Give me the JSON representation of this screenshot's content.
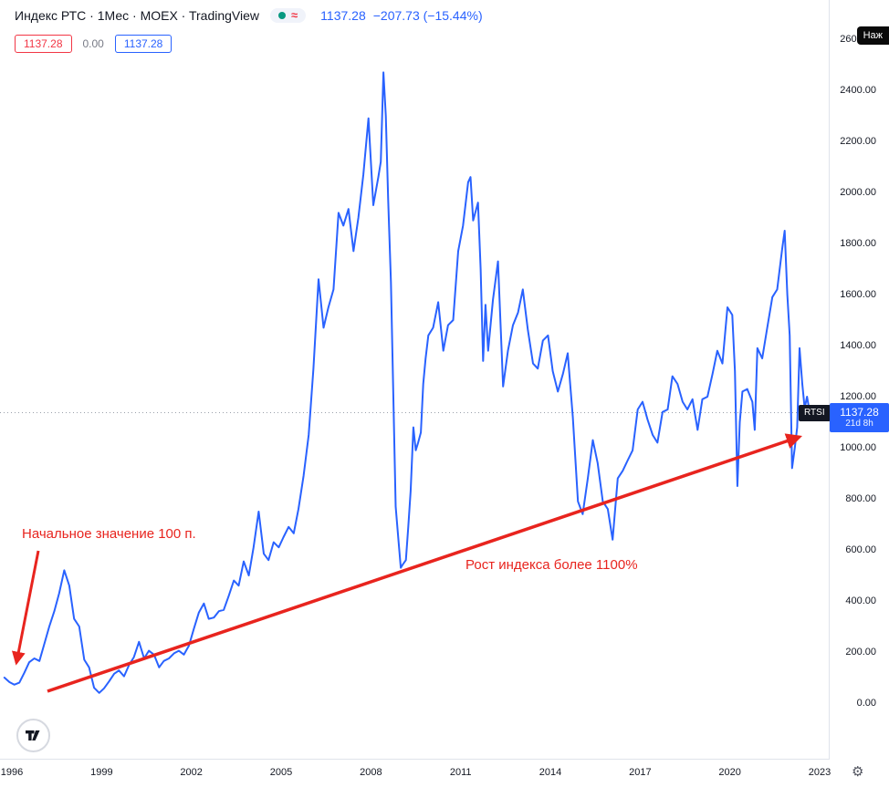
{
  "header": {
    "title": "Индекс РТС · 1Мес · MOEX · TradingView",
    "approx": "≈",
    "price": "1137.28",
    "change": "−207.73 (−15.44%)"
  },
  "legend": {
    "red": "1137.28",
    "spread": "0.00",
    "blue": "1137.28"
  },
  "top_right_note": "Наж",
  "price_tag": {
    "ticker": "RTSI",
    "price": "1137.28",
    "countdown": "21d 8h"
  },
  "icons": {
    "gear": "⚙"
  },
  "colors": {
    "line_blue": "#2962FF",
    "red": "#F23645",
    "annotation_red": "#E8241E",
    "axis_text": "#131722",
    "grid_border": "#E0E3EB",
    "muted": "#787B86",
    "green_dot": "#089981"
  },
  "y_axis": {
    "items": [
      {
        "v": 2600,
        "t": "2600.00"
      },
      {
        "v": 2400,
        "t": "2400.00"
      },
      {
        "v": 2200,
        "t": "2200.00"
      },
      {
        "v": 2000,
        "t": "2000.00"
      },
      {
        "v": 1800,
        "t": "1800.00"
      },
      {
        "v": 1600,
        "t": "1600.00"
      },
      {
        "v": 1400,
        "t": "1400.00"
      },
      {
        "v": 1200,
        "t": "1200.00"
      },
      {
        "v": 1000,
        "t": "1000.00"
      },
      {
        "v": 800,
        "t": "800.00"
      },
      {
        "v": 600,
        "t": "600.00"
      },
      {
        "v": 400,
        "t": "400.00"
      },
      {
        "v": 200,
        "t": "200.00"
      },
      {
        "v": 0,
        "t": "0.00"
      }
    ]
  },
  "x_axis": {
    "items": [
      {
        "v": 1996,
        "t": "1996"
      },
      {
        "v": 1999,
        "t": "1999"
      },
      {
        "v": 2002,
        "t": "2002"
      },
      {
        "v": 2005,
        "t": "2005"
      },
      {
        "v": 2008,
        "t": "2008"
      },
      {
        "v": 2011,
        "t": "2011"
      },
      {
        "v": 2014,
        "t": "2014"
      },
      {
        "v": 2017,
        "t": "2017"
      },
      {
        "v": 2020,
        "t": "2020"
      },
      {
        "v": 2023,
        "t": "2023"
      }
    ]
  },
  "chart_data": {
    "type": "line",
    "title": "Индекс РТС · 1Мес · MOEX",
    "series_name": "RTSI",
    "xlabel": "",
    "ylabel": "",
    "x_range": [
      1995.7,
      2023.3
    ],
    "ylim": [
      0,
      2600
    ],
    "y_tick_step": 200,
    "grid": false,
    "legend_position": "none",
    "line_color": "#2962FF",
    "last_price": 1137.28,
    "last_change": "−207.73 (−15.44%)",
    "annotations": {
      "start": "Начальное значение 100 п.",
      "growth": "Рост индекса более 1100%"
    },
    "points": [
      [
        1995.75,
        100
      ],
      [
        1995.92,
        82
      ],
      [
        1996.08,
        72
      ],
      [
        1996.25,
        80
      ],
      [
        1996.42,
        120
      ],
      [
        1996.58,
        160
      ],
      [
        1996.75,
        175
      ],
      [
        1996.92,
        165
      ],
      [
        1997.08,
        230
      ],
      [
        1997.25,
        300
      ],
      [
        1997.42,
        360
      ],
      [
        1997.58,
        430
      ],
      [
        1997.75,
        520
      ],
      [
        1997.92,
        460
      ],
      [
        1998.08,
        330
      ],
      [
        1998.25,
        300
      ],
      [
        1998.42,
        170
      ],
      [
        1998.58,
        140
      ],
      [
        1998.75,
        60
      ],
      [
        1998.92,
        40
      ],
      [
        1999.08,
        58
      ],
      [
        1999.25,
        85
      ],
      [
        1999.42,
        115
      ],
      [
        1999.58,
        128
      ],
      [
        1999.75,
        105
      ],
      [
        1999.92,
        150
      ],
      [
        2000.08,
        180
      ],
      [
        2000.25,
        240
      ],
      [
        2000.42,
        175
      ],
      [
        2000.58,
        205
      ],
      [
        2000.75,
        190
      ],
      [
        2000.92,
        140
      ],
      [
        2001.08,
        165
      ],
      [
        2001.25,
        175
      ],
      [
        2001.42,
        195
      ],
      [
        2001.58,
        205
      ],
      [
        2001.75,
        190
      ],
      [
        2001.92,
        225
      ],
      [
        2002.08,
        290
      ],
      [
        2002.25,
        355
      ],
      [
        2002.42,
        390
      ],
      [
        2002.58,
        330
      ],
      [
        2002.75,
        335
      ],
      [
        2002.92,
        360
      ],
      [
        2003.08,
        365
      ],
      [
        2003.25,
        420
      ],
      [
        2003.42,
        480
      ],
      [
        2003.58,
        460
      ],
      [
        2003.75,
        555
      ],
      [
        2003.92,
        500
      ],
      [
        2004.08,
        610
      ],
      [
        2004.25,
        750
      ],
      [
        2004.42,
        585
      ],
      [
        2004.58,
        560
      ],
      [
        2004.75,
        630
      ],
      [
        2004.92,
        610
      ],
      [
        2005.08,
        650
      ],
      [
        2005.25,
        690
      ],
      [
        2005.42,
        665
      ],
      [
        2005.58,
        760
      ],
      [
        2005.75,
        890
      ],
      [
        2005.92,
        1050
      ],
      [
        2006.08,
        1310
      ],
      [
        2006.25,
        1660
      ],
      [
        2006.42,
        1470
      ],
      [
        2006.58,
        1550
      ],
      [
        2006.75,
        1620
      ],
      [
        2006.92,
        1920
      ],
      [
        2007.08,
        1870
      ],
      [
        2007.25,
        1935
      ],
      [
        2007.42,
        1770
      ],
      [
        2007.58,
        1900
      ],
      [
        2007.75,
        2070
      ],
      [
        2007.92,
        2290
      ],
      [
        2008.08,
        1950
      ],
      [
        2008.25,
        2060
      ],
      [
        2008.33,
        2120
      ],
      [
        2008.42,
        2470
      ],
      [
        2008.5,
        2300
      ],
      [
        2008.58,
        1970
      ],
      [
        2008.67,
        1650
      ],
      [
        2008.75,
        1210
      ],
      [
        2008.83,
        770
      ],
      [
        2008.92,
        640
      ],
      [
        2009.0,
        530
      ],
      [
        2009.08,
        545
      ],
      [
        2009.17,
        560
      ],
      [
        2009.25,
        690
      ],
      [
        2009.33,
        830
      ],
      [
        2009.42,
        1080
      ],
      [
        2009.5,
        990
      ],
      [
        2009.58,
        1020
      ],
      [
        2009.67,
        1060
      ],
      [
        2009.75,
        1250
      ],
      [
        2009.83,
        1350
      ],
      [
        2009.92,
        1440
      ],
      [
        2010.08,
        1470
      ],
      [
        2010.25,
        1570
      ],
      [
        2010.42,
        1380
      ],
      [
        2010.58,
        1480
      ],
      [
        2010.75,
        1500
      ],
      [
        2010.92,
        1770
      ],
      [
        2011.08,
        1870
      ],
      [
        2011.25,
        2040
      ],
      [
        2011.33,
        2060
      ],
      [
        2011.42,
        1890
      ],
      [
        2011.58,
        1960
      ],
      [
        2011.67,
        1700
      ],
      [
        2011.75,
        1340
      ],
      [
        2011.83,
        1560
      ],
      [
        2011.92,
        1380
      ],
      [
        2012.08,
        1580
      ],
      [
        2012.25,
        1730
      ],
      [
        2012.42,
        1240
      ],
      [
        2012.58,
        1380
      ],
      [
        2012.75,
        1480
      ],
      [
        2012.92,
        1530
      ],
      [
        2013.08,
        1620
      ],
      [
        2013.25,
        1460
      ],
      [
        2013.42,
        1330
      ],
      [
        2013.58,
        1310
      ],
      [
        2013.75,
        1420
      ],
      [
        2013.92,
        1440
      ],
      [
        2014.08,
        1300
      ],
      [
        2014.25,
        1220
      ],
      [
        2014.42,
        1290
      ],
      [
        2014.58,
        1370
      ],
      [
        2014.75,
        1120
      ],
      [
        2014.92,
        790
      ],
      [
        2015.08,
        740
      ],
      [
        2015.25,
        880
      ],
      [
        2015.42,
        1030
      ],
      [
        2015.58,
        940
      ],
      [
        2015.75,
        790
      ],
      [
        2015.92,
        760
      ],
      [
        2016.08,
        640
      ],
      [
        2016.25,
        880
      ],
      [
        2016.42,
        910
      ],
      [
        2016.58,
        950
      ],
      [
        2016.75,
        990
      ],
      [
        2016.92,
        1150
      ],
      [
        2017.08,
        1180
      ],
      [
        2017.25,
        1110
      ],
      [
        2017.42,
        1050
      ],
      [
        2017.58,
        1020
      ],
      [
        2017.75,
        1140
      ],
      [
        2017.92,
        1150
      ],
      [
        2018.08,
        1280
      ],
      [
        2018.25,
        1250
      ],
      [
        2018.42,
        1180
      ],
      [
        2018.58,
        1150
      ],
      [
        2018.75,
        1190
      ],
      [
        2018.92,
        1070
      ],
      [
        2019.08,
        1190
      ],
      [
        2019.25,
        1200
      ],
      [
        2019.42,
        1290
      ],
      [
        2019.58,
        1380
      ],
      [
        2019.75,
        1330
      ],
      [
        2019.92,
        1550
      ],
      [
        2020.08,
        1520
      ],
      [
        2020.17,
        1300
      ],
      [
        2020.25,
        850
      ],
      [
        2020.33,
        1100
      ],
      [
        2020.42,
        1220
      ],
      [
        2020.58,
        1230
      ],
      [
        2020.75,
        1180
      ],
      [
        2020.83,
        1070
      ],
      [
        2020.92,
        1390
      ],
      [
        2021.08,
        1350
      ],
      [
        2021.25,
        1470
      ],
      [
        2021.42,
        1590
      ],
      [
        2021.58,
        1620
      ],
      [
        2021.75,
        1780
      ],
      [
        2021.83,
        1850
      ],
      [
        2021.92,
        1600
      ],
      [
        2022.0,
        1440
      ],
      [
        2022.08,
        920
      ],
      [
        2022.17,
        1000
      ],
      [
        2022.25,
        1080
      ],
      [
        2022.33,
        1390
      ],
      [
        2022.42,
        1250
      ],
      [
        2022.5,
        1155
      ],
      [
        2022.58,
        1200
      ],
      [
        2022.67,
        1137.28
      ]
    ]
  }
}
